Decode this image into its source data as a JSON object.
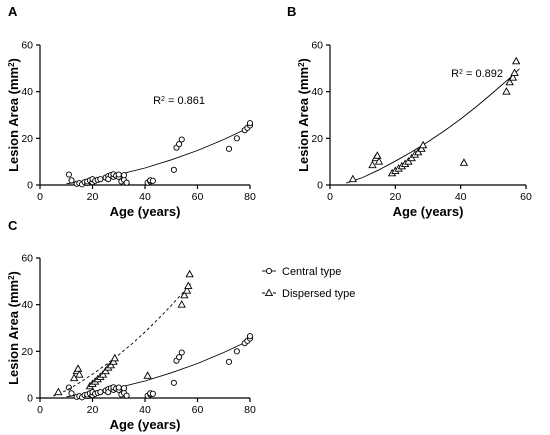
{
  "chart_data": [
    {
      "panel": "A",
      "type": "scatter",
      "xlabel": "Age (years)",
      "ylabel": "Lesion Area (mm²)",
      "xlim": [
        0,
        80
      ],
      "ylim": [
        0,
        60
      ],
      "xticks": [
        "0",
        "20",
        "40",
        "60",
        "80"
      ],
      "yticks": [
        "0",
        "20",
        "40",
        "60"
      ],
      "series": [
        {
          "marker": "circle",
          "fit_r2": "R² = 0.861",
          "fit": [
            [
              10,
              0.5
            ],
            [
              20,
              2.2
            ],
            [
              30,
              4.5
            ],
            [
              40,
              7.3
            ],
            [
              50,
              10.8
            ],
            [
              60,
              14.8
            ],
            [
              70,
              19.5
            ],
            [
              80,
              24.8
            ]
          ],
          "points": [
            [
              11,
              4.5
            ],
            [
              12,
              2
            ],
            [
              14,
              0.5
            ],
            [
              15,
              0.8
            ],
            [
              16,
              0.3
            ],
            [
              17,
              1.2
            ],
            [
              18,
              0.8
            ],
            [
              18,
              1.5
            ],
            [
              19,
              2
            ],
            [
              20,
              1.2
            ],
            [
              20,
              2.5
            ],
            [
              21,
              1.8
            ],
            [
              22,
              2.2
            ],
            [
              23,
              2.5
            ],
            [
              25,
              3.2
            ],
            [
              26,
              3.8
            ],
            [
              26,
              2.5
            ],
            [
              27,
              4.2
            ],
            [
              28,
              3.5
            ],
            [
              28,
              4.6
            ],
            [
              29,
              4
            ],
            [
              30,
              3.5
            ],
            [
              30,
              4.5
            ],
            [
              31,
              1.5
            ],
            [
              32,
              2.2
            ],
            [
              32,
              4.2
            ],
            [
              33,
              1
            ],
            [
              41,
              1
            ],
            [
              42,
              1.5
            ],
            [
              42,
              2
            ],
            [
              43,
              1.8
            ],
            [
              51,
              6.5
            ],
            [
              52,
              16
            ],
            [
              53,
              17.5
            ],
            [
              54,
              19.5
            ],
            [
              72,
              15.5
            ],
            [
              75,
              20
            ],
            [
              78,
              23.5
            ],
            [
              79,
              24.5
            ],
            [
              80,
              25.5
            ],
            [
              80,
              26.5
            ]
          ]
        }
      ]
    },
    {
      "panel": "B",
      "type": "scatter",
      "xlabel": "Age (years)",
      "ylabel": "Lesion Area (mm²)",
      "xlim": [
        0,
        60
      ],
      "ylim": [
        0,
        60
      ],
      "xticks": [
        "0",
        "20",
        "40",
        "60"
      ],
      "yticks": [
        "0",
        "20",
        "40",
        "60"
      ],
      "series": [
        {
          "marker": "triangle",
          "fit_r2": "R² = 0.892",
          "fit": [
            [
              5,
              0.8
            ],
            [
              10,
              3.2
            ],
            [
              15,
              6.5
            ],
            [
              20,
              10.2
            ],
            [
              25,
              14.2
            ],
            [
              30,
              18.5
            ],
            [
              35,
              23.2
            ],
            [
              40,
              28.3
            ],
            [
              45,
              33.8
            ],
            [
              50,
              39.7
            ],
            [
              55,
              45.8
            ],
            [
              58,
              49.8
            ]
          ],
          "points": [
            [
              7,
              2.5
            ],
            [
              13,
              8.5
            ],
            [
              14,
              11.5
            ],
            [
              14.5,
              12.5
            ],
            [
              15,
              10
            ],
            [
              19,
              5
            ],
            [
              20,
              6
            ],
            [
              21,
              7
            ],
            [
              22,
              8
            ],
            [
              23,
              9
            ],
            [
              24,
              10
            ],
            [
              25,
              11.5
            ],
            [
              26,
              13
            ],
            [
              27,
              14
            ],
            [
              28,
              15.5
            ],
            [
              28.5,
              17
            ],
            [
              41,
              9.5
            ],
            [
              54,
              40
            ],
            [
              55,
              44
            ],
            [
              56,
              46
            ],
            [
              56.5,
              48
            ],
            [
              57,
              53
            ]
          ]
        }
      ]
    },
    {
      "panel": "C",
      "type": "scatter",
      "xlabel": "Age (years)",
      "ylabel": "Lesion Area (mm²)",
      "xlim": [
        0,
        80
      ],
      "ylim": [
        0,
        60
      ],
      "xticks": [
        "0",
        "20",
        "40",
        "60",
        "80"
      ],
      "yticks": [
        "0",
        "20",
        "40",
        "60"
      ],
      "legend": "right",
      "series": [
        {
          "name": "Central type",
          "marker": "circle",
          "line": "solid",
          "fit": [
            [
              10,
              0.5
            ],
            [
              20,
              2.2
            ],
            [
              30,
              4.5
            ],
            [
              40,
              7.3
            ],
            [
              50,
              10.8
            ],
            [
              60,
              14.8
            ],
            [
              70,
              19.5
            ],
            [
              80,
              24.8
            ]
          ],
          "points": [
            [
              11,
              4.5
            ],
            [
              12,
              2
            ],
            [
              14,
              0.5
            ],
            [
              15,
              0.8
            ],
            [
              16,
              0.3
            ],
            [
              17,
              1.2
            ],
            [
              18,
              0.8
            ],
            [
              18,
              1.5
            ],
            [
              19,
              2
            ],
            [
              20,
              1.2
            ],
            [
              20,
              2.5
            ],
            [
              21,
              1.8
            ],
            [
              22,
              2.2
            ],
            [
              23,
              2.5
            ],
            [
              25,
              3.2
            ],
            [
              26,
              3.8
            ],
            [
              26,
              2.5
            ],
            [
              27,
              4.2
            ],
            [
              28,
              3.5
            ],
            [
              28,
              4.6
            ],
            [
              29,
              4
            ],
            [
              30,
              3.5
            ],
            [
              30,
              4.5
            ],
            [
              31,
              1.5
            ],
            [
              32,
              2.2
            ],
            [
              32,
              4.2
            ],
            [
              33,
              1
            ],
            [
              41,
              1
            ],
            [
              42,
              1.5
            ],
            [
              42,
              2
            ],
            [
              43,
              1.8
            ],
            [
              51,
              6.5
            ],
            [
              52,
              16
            ],
            [
              53,
              17.5
            ],
            [
              54,
              19.5
            ],
            [
              72,
              15.5
            ],
            [
              75,
              20
            ],
            [
              78,
              23.5
            ],
            [
              79,
              24.5
            ],
            [
              80,
              25.5
            ],
            [
              80,
              26.5
            ]
          ]
        },
        {
          "name": "Dispersed type",
          "marker": "triangle",
          "line": "dashed",
          "fit": [
            [
              5,
              0.8
            ],
            [
              10,
              3.2
            ],
            [
              15,
              6.5
            ],
            [
              20,
              10.2
            ],
            [
              25,
              14.2
            ],
            [
              30,
              18.5
            ],
            [
              35,
              23.2
            ],
            [
              40,
              28.3
            ],
            [
              45,
              33.8
            ],
            [
              50,
              39.7
            ],
            [
              55,
              45.8
            ],
            [
              58,
              49.8
            ]
          ],
          "points": [
            [
              7,
              2.5
            ],
            [
              13,
              8.5
            ],
            [
              14,
              11.5
            ],
            [
              14.5,
              12.5
            ],
            [
              15,
              10
            ],
            [
              19,
              5
            ],
            [
              20,
              6
            ],
            [
              21,
              7
            ],
            [
              22,
              8
            ],
            [
              23,
              9
            ],
            [
              24,
              10
            ],
            [
              25,
              11.5
            ],
            [
              26,
              13
            ],
            [
              27,
              14
            ],
            [
              28,
              15.5
            ],
            [
              28.5,
              17
            ],
            [
              41,
              9.5
            ],
            [
              54,
              40
            ],
            [
              55,
              44
            ],
            [
              56,
              46
            ],
            [
              56.5,
              48
            ],
            [
              57,
              53
            ]
          ]
        }
      ]
    }
  ]
}
